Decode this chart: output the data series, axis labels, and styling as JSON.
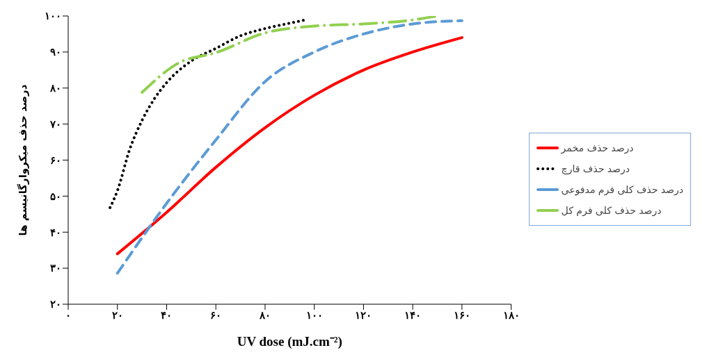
{
  "chart_data": {
    "type": "line",
    "xlabel": "UV dose (mJ.cm⁻²)",
    "ylabel": "درصد حذف میکروارگانیسم ها",
    "xlim": [
      0,
      180
    ],
    "xticks": [
      {
        "value": 0,
        "label": "۰"
      },
      {
        "value": 20,
        "label": "۲۰"
      },
      {
        "value": 40,
        "label": "۴۰"
      },
      {
        "value": 60,
        "label": "۶۰"
      },
      {
        "value": 80,
        "label": "۸۰"
      },
      {
        "value": 100,
        "label": "۱۰۰"
      },
      {
        "value": 120,
        "label": "۱۲۰"
      },
      {
        "value": 140,
        "label": "۱۴۰"
      },
      {
        "value": 160,
        "label": "۱۶۰"
      },
      {
        "value": 180,
        "label": "۱۸۰"
      }
    ],
    "ylim": [
      20,
      100
    ],
    "yticks": [
      {
        "value": 20,
        "label": "۲۰"
      },
      {
        "value": 30,
        "label": "۳۰"
      },
      {
        "value": 40,
        "label": "۴۰"
      },
      {
        "value": 50,
        "label": "۵۰"
      },
      {
        "value": 60,
        "label": "۶۰"
      },
      {
        "value": 70,
        "label": "۷۰"
      },
      {
        "value": 80,
        "label": "۸۰"
      },
      {
        "value": 90,
        "label": "۹۰"
      },
      {
        "value": 100,
        "label": "۱۰۰"
      }
    ],
    "grid": false,
    "legend": "right",
    "marker": "none",
    "series": [
      {
        "name": "درصد حذف مخمر",
        "color": "#ff0000",
        "line_style": "solid",
        "x": [
          20,
          40,
          60,
          80,
          100,
          120,
          140,
          160
        ],
        "values": [
          34,
          45.5,
          58,
          69,
          78,
          85,
          90,
          94
        ]
      },
      {
        "name": "درصد حذف قارچ",
        "color": "#000000",
        "line_style": "dotted",
        "x": [
          17,
          20,
          25,
          30,
          35,
          40,
          50,
          60,
          70,
          80,
          90,
          97
        ],
        "values": [
          46.8,
          51.5,
          63,
          71,
          77,
          81.5,
          87.5,
          91,
          94.5,
          96.5,
          98,
          99
        ]
      },
      {
        "name": "درصد حذف کلی فرم مدفوعی",
        "color": "#5b9bd5",
        "line_style": "dashed",
        "x": [
          20,
          40,
          60,
          80,
          100,
          120,
          140,
          160
        ],
        "values": [
          28.6,
          48,
          65.6,
          81.8,
          90,
          95,
          97.8,
          98.7
        ]
      },
      {
        "name": "درصد حذف کلی فرم کل",
        "color": "#92d050",
        "line_style": "dashdot",
        "x": [
          30,
          45,
          60,
          80,
          100,
          120,
          140,
          150
        ],
        "values": [
          78.8,
          87,
          89.8,
          95.3,
          97.2,
          97.8,
          98.9,
          100
        ]
      }
    ]
  }
}
